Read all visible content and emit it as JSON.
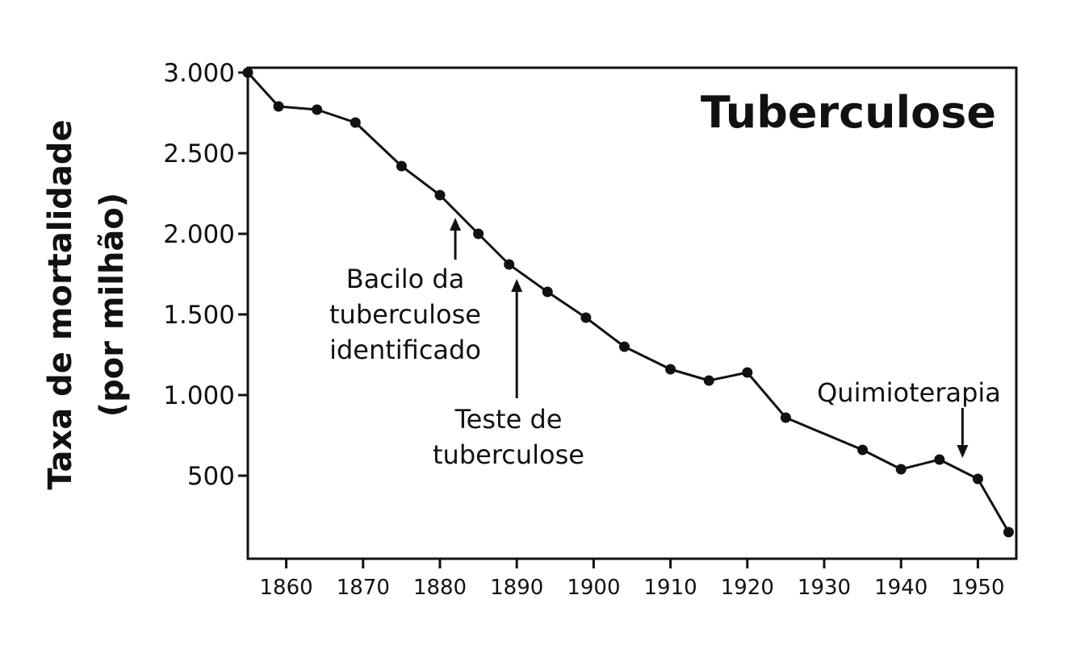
{
  "chart_data": {
    "type": "line",
    "title": "Tuberculose",
    "ylabel_lines": [
      "Taxa de mortalidade",
      "(por milhão)"
    ],
    "xlabel": "",
    "xlim": [
      1855,
      1955
    ],
    "ylim": [
      0,
      3000
    ],
    "x_ticks": [
      {
        "value": 1860,
        "label": "1860"
      },
      {
        "value": 1870,
        "label": "1870"
      },
      {
        "value": 1880,
        "label": "1880"
      },
      {
        "value": 1890,
        "label": "1890"
      },
      {
        "value": 1900,
        "label": "1900"
      },
      {
        "value": 1910,
        "label": "1910"
      },
      {
        "value": 1920,
        "label": "1920"
      },
      {
        "value": 1930,
        "label": "1930"
      },
      {
        "value": 1940,
        "label": "1940"
      },
      {
        "value": 1950,
        "label": "1950"
      }
    ],
    "y_ticks": [
      {
        "value": 3000,
        "label": "3.000"
      },
      {
        "value": 2500,
        "label": "2.500"
      },
      {
        "value": 2000,
        "label": "2.000"
      },
      {
        "value": 1500,
        "label": "1.500"
      },
      {
        "value": 1000,
        "label": "1.000"
      },
      {
        "value": 500,
        "label": "500"
      }
    ],
    "grid": false,
    "series": [
      {
        "x": [
          1855,
          1859,
          1864,
          1869,
          1875,
          1880,
          1885,
          1889,
          1894,
          1899,
          1904,
          1910,
          1915,
          1920,
          1925,
          1935,
          1940,
          1945,
          1950,
          1954
        ],
        "y": [
          3000,
          2790,
          2770,
          2690,
          2420,
          2240,
          2000,
          1810,
          1640,
          1480,
          1300,
          1160,
          1090,
          1140,
          860,
          660,
          540,
          600,
          480,
          150
        ],
        "color": "#111111"
      }
    ],
    "annotations": [
      {
        "lines": [
          "Bacilo da",
          "tuberculose",
          "identificado"
        ],
        "arrow_x": 1882
      },
      {
        "lines": [
          "Teste de",
          "tuberculose"
        ],
        "arrow_x": 1890
      },
      {
        "lines": [
          "Quimioterapia"
        ],
        "arrow_x": 1948
      }
    ]
  }
}
